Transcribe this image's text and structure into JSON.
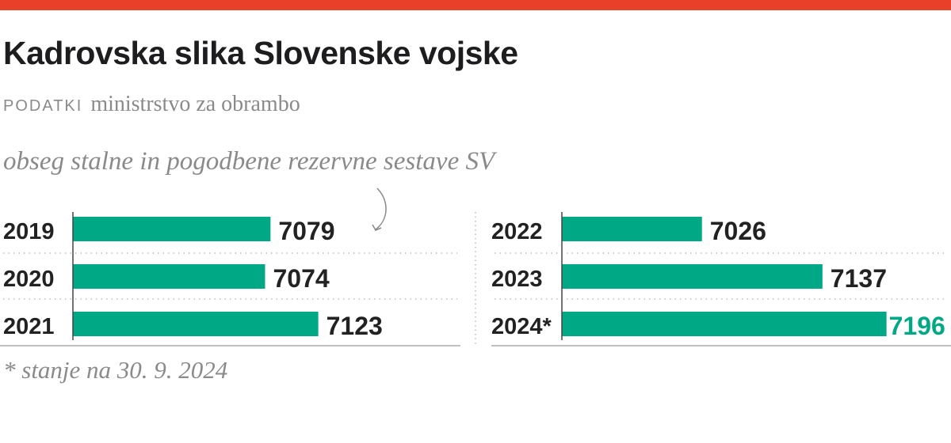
{
  "header": {
    "title": "Kadrovska slika Slovenske vojske",
    "source_label": "PODATKI",
    "source": "ministrstvo za obrambo"
  },
  "colors": {
    "accent": "#e8412a",
    "bar": "#00a886",
    "highlight_text": "#00a886"
  },
  "chart_data": {
    "type": "bar",
    "orientation": "horizontal",
    "title": "obseg stalne in pogodbene rezervne sestave SV",
    "categories": [
      "2019",
      "2020",
      "2021",
      "2022",
      "2023",
      "2024*"
    ],
    "values": [
      7079,
      7074,
      7123,
      7026,
      7137,
      7196
    ],
    "value_labels": [
      "7079",
      "7074",
      "7123",
      "7026",
      "7137",
      "7196"
    ],
    "highlight_index": 5,
    "xlim": [
      6897,
      7200
    ],
    "grid": false,
    "panels": [
      [
        0,
        1,
        2
      ],
      [
        3,
        4,
        5
      ]
    ]
  },
  "footnote": "* stanje na 30. 9. 2024"
}
